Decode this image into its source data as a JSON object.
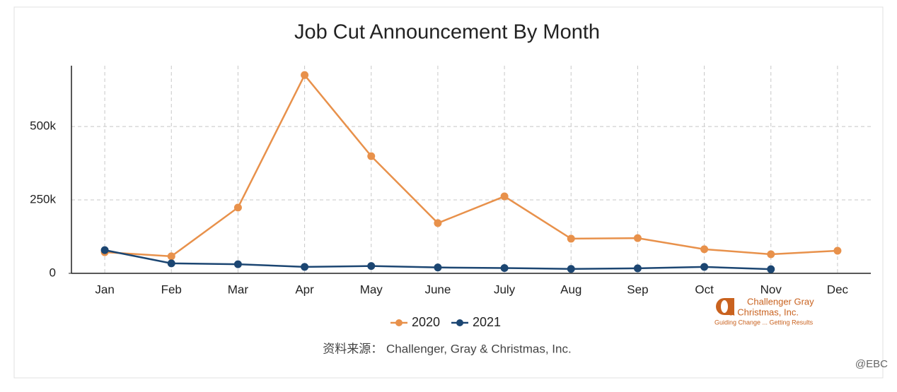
{
  "chart_data": {
    "type": "line",
    "title": "Job Cut Announcement By Month",
    "categories": [
      "Jan",
      "Feb",
      "Mar",
      "Apr",
      "May",
      "June",
      "July",
      "Aug",
      "Sep",
      "Oct",
      "Nov",
      "Dec"
    ],
    "series": [
      {
        "name": "2020",
        "color": "#e8914b",
        "values": [
          72000,
          58000,
          224000,
          675000,
          399000,
          171000,
          262000,
          118000,
          120000,
          82000,
          65000,
          77000
        ]
      },
      {
        "name": "2021",
        "color": "#1c4672",
        "values": [
          79000,
          34000,
          31000,
          22000,
          25000,
          20000,
          18000,
          15000,
          17000,
          22000,
          14000,
          null
        ]
      }
    ],
    "ylim": [
      0,
      707000
    ],
    "yticks": [
      0,
      {
        "value": 250000,
        "label": "250k"
      },
      {
        "value": 500000,
        "label": "500k"
      }
    ],
    "grid": true
  },
  "source": "资料来源： Challenger, Gray & Christmas, Inc.",
  "logo": {
    "line1": "Challenger Gray",
    "line2": "& Christmas, Inc.",
    "tagline": "Guiding Change ... Getting Results"
  },
  "watermark": "@EBC"
}
